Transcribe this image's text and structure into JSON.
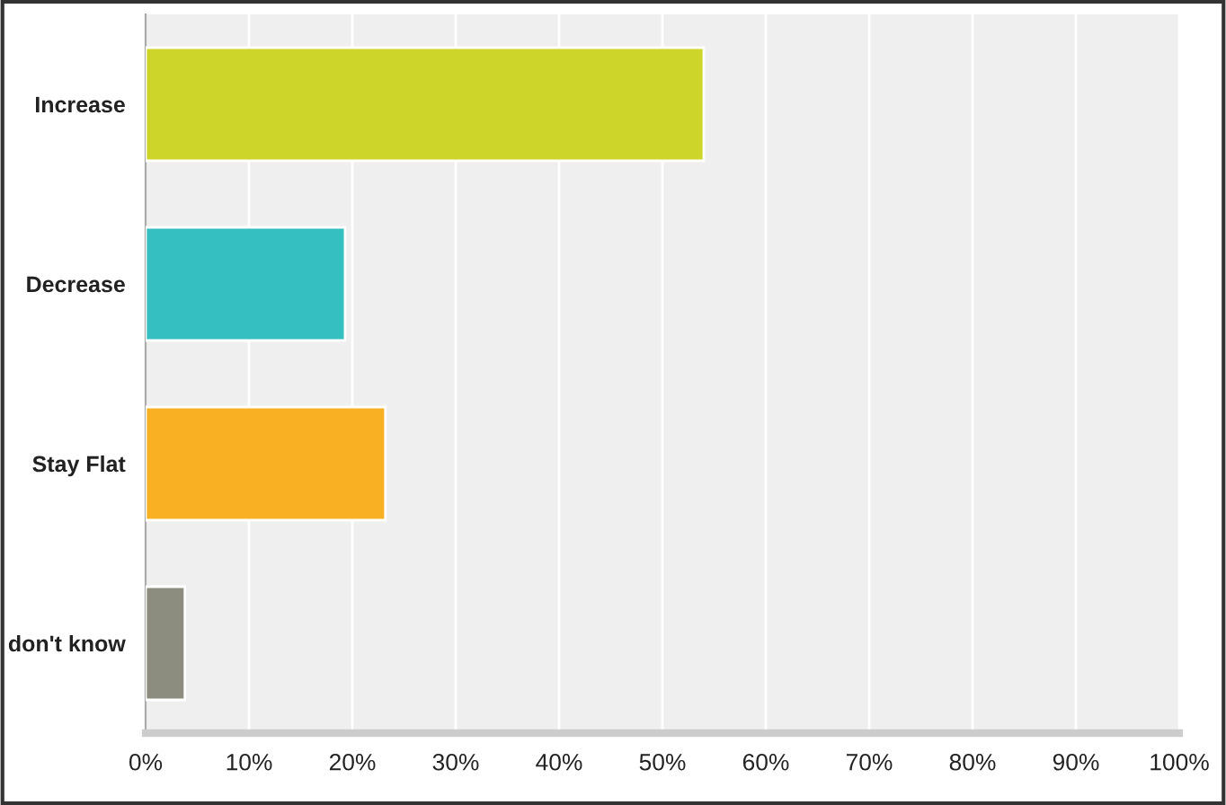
{
  "chart_data": {
    "type": "bar",
    "orientation": "horizontal",
    "categories": [
      "Increase",
      "Decrease",
      "Stay Flat",
      "don't know"
    ],
    "values": [
      54,
      19.3,
      23.2,
      3.8
    ],
    "colors": [
      "#cdd52b",
      "#35bfc1",
      "#f9b022",
      "#8d8d7f"
    ],
    "xlim": [
      0,
      100
    ],
    "xticks": [
      {
        "value": 0,
        "label": "0%"
      },
      {
        "value": 10,
        "label": "10%"
      },
      {
        "value": 20,
        "label": "20%"
      },
      {
        "value": 30,
        "label": "30%"
      },
      {
        "value": 40,
        "label": "40%"
      },
      {
        "value": 50,
        "label": "50%"
      },
      {
        "value": 60,
        "label": "60%"
      },
      {
        "value": 70,
        "label": "70%"
      },
      {
        "value": 80,
        "label": "80%"
      },
      {
        "value": 90,
        "label": "90%"
      },
      {
        "value": 100,
        "label": "100%"
      }
    ],
    "grid": "x"
  }
}
